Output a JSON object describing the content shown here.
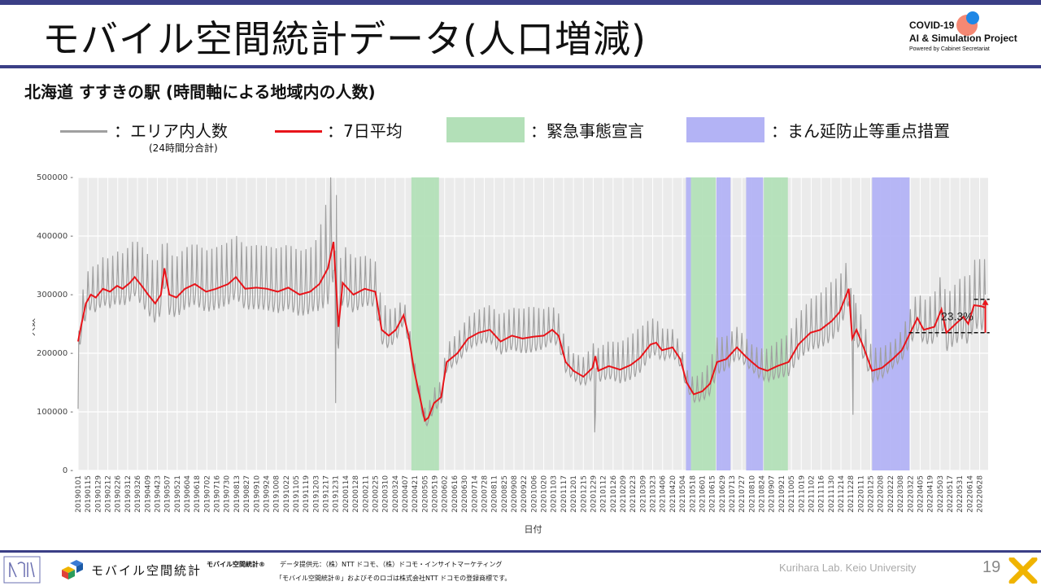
{
  "slide": {
    "title": "モバイル空間統計データ(人口増減)",
    "subtitle": "北海道 すすきの駅 (時間軸による地域内の人数)",
    "brand": {
      "line1": "COVID-19",
      "line2": "AI & Simulation Project",
      "line3": "Powered by Cabinet Secretariat"
    },
    "legend": {
      "area_label": "：エリア内人数",
      "area_note": "(24時間分合計)",
      "avg_label": "：7日平均",
      "emergency_label": "：緊急事態宣言",
      "priority_label": "：まん延防止等重点措置"
    },
    "footer": {
      "logo_text": "モバイル空間統計",
      "product": "モバイル空間統計®",
      "provider": "データ提供元：（株）NTT ドコモ、（株）ドコモ・インサイトマーケティング",
      "trademark": "「モバイル空間統計®」およびそのロゴは株式会社NTT ドコモの登録商標です。",
      "credit": "Kurihara Lab. Keio University",
      "page": "19"
    },
    "colors": {
      "accent": "#3b3f86",
      "daily": "#a0a0a0",
      "avg": "#e8141a",
      "emergency": "#b3e0b8",
      "priority": "#b3b3f5",
      "plot_bg": "#ebebeb"
    }
  },
  "chart_data": {
    "type": "line",
    "xlabel": "日付",
    "ylabel": "人数",
    "ylim": [
      0,
      500000
    ],
    "yticks": [
      0,
      100000,
      200000,
      300000,
      400000,
      500000
    ],
    "x_range": [
      "2019-01-01",
      "2022-07-10"
    ],
    "xtick_start": "2019-01-01",
    "xtick_step_days": 14,
    "emergency_periods": [
      [
        "2020-04-16",
        "2020-05-25"
      ],
      [
        "2021-05-16",
        "2021-06-20"
      ],
      [
        "2021-08-27",
        "2021-09-30"
      ]
    ],
    "priority_periods": [
      [
        "2021-05-09",
        "2021-05-16"
      ],
      [
        "2021-06-21",
        "2021-07-11"
      ],
      [
        "2021-08-02",
        "2021-08-26"
      ],
      [
        "2022-01-27",
        "2022-03-21"
      ]
    ],
    "annotation": {
      "text": "23.3%",
      "low": 235000,
      "high": 292000
    },
    "series": [
      {
        "name": "エリア内人数",
        "kind": "daily",
        "amp_points": [
          [
            "2019-01-01",
            30000
          ],
          [
            "2019-04-01",
            45000
          ],
          [
            "2019-12-01",
            50000
          ],
          [
            "2019-12-25",
            90000
          ],
          [
            "2020-01-10",
            45000
          ],
          [
            "2020-03-15",
            30000
          ],
          [
            "2020-04-20",
            12000
          ],
          [
            "2020-06-15",
            22000
          ],
          [
            "2020-10-01",
            35000
          ],
          [
            "2020-12-01",
            20000
          ],
          [
            "2021-03-01",
            35000
          ],
          [
            "2021-05-10",
            15000
          ],
          [
            "2021-06-21",
            28000
          ],
          [
            "2021-08-10",
            20000
          ],
          [
            "2021-10-15",
            35000
          ],
          [
            "2021-12-01",
            45000
          ],
          [
            "2022-01-15",
            28000
          ],
          [
            "2022-03-01",
            20000
          ],
          [
            "2022-05-01",
            40000
          ],
          [
            "2022-07-05",
            55000
          ]
        ],
        "spikes": [
          [
            "2019-01-01",
            105000
          ],
          [
            "2019-12-31",
            115000
          ],
          [
            "2020-01-01",
            470000
          ],
          [
            "2020-12-31",
            65000
          ],
          [
            "2021-01-01",
            95000
          ],
          [
            "2021-12-31",
            95000
          ],
          [
            "2022-01-01",
            300000
          ]
        ]
      },
      {
        "name": "7日平均",
        "kind": "avg",
        "points": [
          [
            "2019-01-01",
            220000
          ],
          [
            "2019-01-05",
            245000
          ],
          [
            "2019-01-12",
            285000
          ],
          [
            "2019-01-19",
            300000
          ],
          [
            "2019-01-26",
            295000
          ],
          [
            "2019-02-05",
            310000
          ],
          [
            "2019-02-15",
            305000
          ],
          [
            "2019-02-25",
            315000
          ],
          [
            "2019-03-05",
            310000
          ],
          [
            "2019-03-15",
            320000
          ],
          [
            "2019-03-22",
            330000
          ],
          [
            "2019-04-01",
            315000
          ],
          [
            "2019-04-10",
            300000
          ],
          [
            "2019-04-20",
            285000
          ],
          [
            "2019-04-28",
            300000
          ],
          [
            "2019-05-03",
            345000
          ],
          [
            "2019-05-10",
            300000
          ],
          [
            "2019-05-20",
            295000
          ],
          [
            "2019-06-01",
            310000
          ],
          [
            "2019-06-15",
            318000
          ],
          [
            "2019-07-01",
            305000
          ],
          [
            "2019-07-15",
            310000
          ],
          [
            "2019-08-01",
            318000
          ],
          [
            "2019-08-12",
            330000
          ],
          [
            "2019-08-25",
            310000
          ],
          [
            "2019-09-10",
            312000
          ],
          [
            "2019-09-25",
            310000
          ],
          [
            "2019-10-10",
            305000
          ],
          [
            "2019-10-25",
            312000
          ],
          [
            "2019-11-10",
            300000
          ],
          [
            "2019-11-25",
            305000
          ],
          [
            "2019-12-08",
            318000
          ],
          [
            "2019-12-20",
            345000
          ],
          [
            "2019-12-28",
            390000
          ],
          [
            "2020-01-04",
            245000
          ],
          [
            "2020-01-10",
            320000
          ],
          [
            "2020-01-25",
            300000
          ],
          [
            "2020-02-10",
            310000
          ],
          [
            "2020-02-25",
            305000
          ],
          [
            "2020-03-05",
            240000
          ],
          [
            "2020-03-15",
            230000
          ],
          [
            "2020-03-25",
            240000
          ],
          [
            "2020-04-05",
            265000
          ],
          [
            "2020-04-12",
            230000
          ],
          [
            "2020-04-20",
            170000
          ],
          [
            "2020-04-28",
            125000
          ],
          [
            "2020-05-05",
            85000
          ],
          [
            "2020-05-10",
            90000
          ],
          [
            "2020-05-18",
            115000
          ],
          [
            "2020-05-28",
            125000
          ],
          [
            "2020-06-05",
            185000
          ],
          [
            "2020-06-20",
            200000
          ],
          [
            "2020-07-05",
            225000
          ],
          [
            "2020-07-20",
            235000
          ],
          [
            "2020-08-05",
            240000
          ],
          [
            "2020-08-20",
            220000
          ],
          [
            "2020-09-05",
            230000
          ],
          [
            "2020-09-20",
            225000
          ],
          [
            "2020-10-05",
            228000
          ],
          [
            "2020-10-20",
            230000
          ],
          [
            "2020-11-01",
            240000
          ],
          [
            "2020-11-10",
            230000
          ],
          [
            "2020-11-20",
            185000
          ],
          [
            "2020-12-01",
            170000
          ],
          [
            "2020-12-15",
            160000
          ],
          [
            "2020-12-28",
            175000
          ],
          [
            "2021-01-01",
            195000
          ],
          [
            "2021-01-05",
            170000
          ],
          [
            "2021-01-20",
            178000
          ],
          [
            "2021-02-05",
            172000
          ],
          [
            "2021-02-20",
            180000
          ],
          [
            "2021-03-05",
            192000
          ],
          [
            "2021-03-20",
            215000
          ],
          [
            "2021-03-28",
            218000
          ],
          [
            "2021-04-05",
            205000
          ],
          [
            "2021-04-20",
            210000
          ],
          [
            "2021-05-01",
            190000
          ],
          [
            "2021-05-10",
            150000
          ],
          [
            "2021-05-20",
            130000
          ],
          [
            "2021-06-01",
            135000
          ],
          [
            "2021-06-12",
            148000
          ],
          [
            "2021-06-22",
            185000
          ],
          [
            "2021-07-05",
            190000
          ],
          [
            "2021-07-20",
            210000
          ],
          [
            "2021-08-01",
            195000
          ],
          [
            "2021-08-10",
            185000
          ],
          [
            "2021-08-20",
            175000
          ],
          [
            "2021-09-01",
            170000
          ],
          [
            "2021-09-15",
            178000
          ],
          [
            "2021-10-01",
            185000
          ],
          [
            "2021-10-15",
            215000
          ],
          [
            "2021-11-01",
            235000
          ],
          [
            "2021-11-15",
            240000
          ],
          [
            "2021-12-01",
            255000
          ],
          [
            "2021-12-12",
            270000
          ],
          [
            "2021-12-25",
            310000
          ],
          [
            "2021-12-30",
            225000
          ],
          [
            "2022-01-05",
            240000
          ],
          [
            "2022-01-15",
            210000
          ],
          [
            "2022-01-27",
            170000
          ],
          [
            "2022-02-10",
            175000
          ],
          [
            "2022-02-25",
            190000
          ],
          [
            "2022-03-10",
            205000
          ],
          [
            "2022-03-22",
            235000
          ],
          [
            "2022-04-01",
            260000
          ],
          [
            "2022-04-10",
            240000
          ],
          [
            "2022-04-25",
            245000
          ],
          [
            "2022-05-05",
            275000
          ],
          [
            "2022-05-12",
            235000
          ],
          [
            "2022-05-25",
            250000
          ],
          [
            "2022-06-05",
            262000
          ],
          [
            "2022-06-12",
            250000
          ],
          [
            "2022-06-20",
            282000
          ],
          [
            "2022-07-01",
            280000
          ],
          [
            "2022-07-05",
            278000
          ]
        ]
      }
    ]
  }
}
